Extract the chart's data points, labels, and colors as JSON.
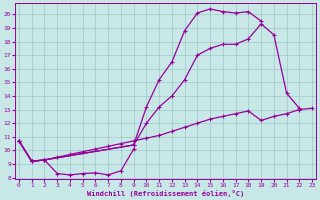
{
  "bg_color": "#c8e8e8",
  "line_color": "#990099",
  "grid_color": "#a0c8c8",
  "xlabel": "Windchill (Refroidissement éolien,°C)",
  "xlim": [
    -0.3,
    23.3
  ],
  "ylim": [
    7.9,
    20.8
  ],
  "xticks": [
    0,
    1,
    2,
    3,
    4,
    5,
    6,
    7,
    8,
    9,
    10,
    11,
    12,
    13,
    14,
    15,
    16,
    17,
    18,
    19,
    20,
    21,
    22,
    23
  ],
  "yticks": [
    8,
    9,
    10,
    11,
    12,
    13,
    14,
    15,
    16,
    17,
    18,
    19,
    20
  ],
  "curves": [
    {
      "x": [
        0,
        1,
        2,
        9,
        10,
        11,
        12,
        13,
        14,
        15,
        16,
        17,
        18,
        19
      ],
      "y": [
        10.7,
        9.2,
        9.3,
        10.4,
        13.2,
        15.2,
        16.5,
        18.8,
        20.1,
        20.4,
        20.2,
        20.1,
        20.2,
        19.5
      ]
    },
    {
      "x": [
        0,
        1,
        2,
        9,
        10,
        11,
        12,
        13,
        14,
        15,
        16,
        17,
        18,
        19,
        20,
        21,
        22
      ],
      "y": [
        10.7,
        9.2,
        9.3,
        10.4,
        12.0,
        13.2,
        14.0,
        15.2,
        17.0,
        17.5,
        17.8,
        17.8,
        18.2,
        19.3,
        18.5,
        14.2,
        13.1
      ]
    },
    {
      "x": [
        0,
        1,
        2,
        3,
        4,
        5,
        6,
        7,
        8,
        9,
        10,
        11,
        12,
        13,
        14,
        15,
        16,
        17,
        18,
        19,
        20,
        21,
        22,
        23
      ],
      "y": [
        10.7,
        9.2,
        9.3,
        9.5,
        9.7,
        9.9,
        10.1,
        10.3,
        10.5,
        10.7,
        10.9,
        11.1,
        11.4,
        11.7,
        12.0,
        12.3,
        12.5,
        12.7,
        12.9,
        12.2,
        12.5,
        12.7,
        13.0,
        13.1
      ]
    },
    {
      "x": [
        0,
        1,
        2,
        3,
        4,
        5,
        6,
        7,
        8,
        9
      ],
      "y": [
        10.7,
        9.2,
        9.3,
        8.3,
        8.2,
        8.3,
        8.35,
        8.2,
        8.5,
        10.1
      ]
    },
    {
      "x": [
        3,
        4,
        5,
        6,
        7,
        8,
        9
      ],
      "y": [
        8.3,
        8.2,
        8.3,
        8.35,
        8.2,
        8.5,
        8.7
      ]
    }
  ]
}
